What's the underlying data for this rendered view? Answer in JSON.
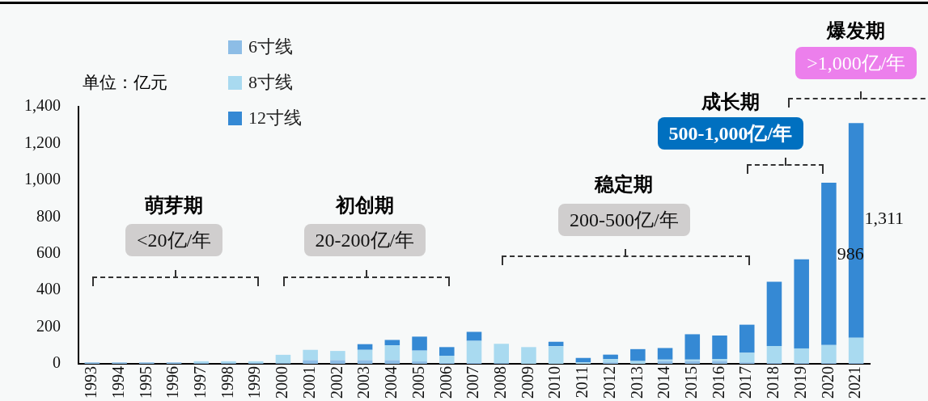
{
  "chart_data": {
    "type": "bar",
    "stacked": true,
    "categories": [
      "1993",
      "1994",
      "1995",
      "1996",
      "1997",
      "1998",
      "1999",
      "2000",
      "2001",
      "2002",
      "2003",
      "2004",
      "2005",
      "2006",
      "2007",
      "2008",
      "2009",
      "2010",
      "2011",
      "2012",
      "2013",
      "2014",
      "2015",
      "2016",
      "2017",
      "2018",
      "2019",
      "2020",
      "2021"
    ],
    "series": [
      {
        "name": "6寸线",
        "color": "#8dbde6",
        "values": [
          8,
          8,
          8,
          8,
          4,
          4,
          4,
          3,
          20,
          20,
          20,
          20,
          13,
          5,
          5,
          4,
          0,
          0,
          0,
          8,
          0,
          15,
          15,
          15,
          8,
          5,
          5,
          5,
          5
        ]
      },
      {
        "name": "8寸线",
        "color": "#a9daf0",
        "values": [
          0,
          0,
          0,
          0,
          10,
          10,
          10,
          46,
          56,
          50,
          56,
          81,
          59,
          39,
          120,
          105,
          91,
          96,
          8,
          18,
          15,
          8,
          8,
          11,
          52,
          92,
          79,
          97,
          137
        ]
      },
      {
        "name": "12寸线",
        "color": "#3589d4",
        "values": [
          0,
          0,
          0,
          0,
          0,
          0,
          0,
          0,
          0,
          0,
          31,
          29,
          76,
          47,
          49,
          0,
          0,
          24,
          24,
          24,
          65,
          63,
          138,
          128,
          153,
          350,
          485,
          884,
          1169
        ]
      }
    ],
    "ylim": [
      0,
      1400
    ],
    "yticks": [
      0,
      {
        "value": 200,
        "label": "200"
      },
      {
        "value": 400,
        "label": "400"
      },
      {
        "value": 600,
        "label": "600"
      },
      {
        "value": 800,
        "label": "800"
      },
      {
        "value": 1000,
        "label": "1,000"
      },
      {
        "value": 1200,
        "label": "1,200"
      },
      {
        "value": 1400,
        "label": "1,400"
      }
    ],
    "grid": false,
    "legend": "top left",
    "totals": [
      null,
      null,
      null,
      null,
      null,
      null,
      null,
      null,
      null,
      null,
      null,
      null,
      null,
      null,
      null,
      null,
      null,
      null,
      null,
      null,
      null,
      null,
      null,
      null,
      null,
      null,
      null,
      "986",
      "1,311"
    ],
    "annotations": [
      "单位：亿元",
      "萌芽期",
      "<20亿/年",
      "初创期",
      "20-200亿/年",
      "稳定期",
      "200-500亿/年",
      "成长期",
      "500-1,000亿/年",
      "爆发期",
      ">1,000亿/年"
    ]
  }
}
